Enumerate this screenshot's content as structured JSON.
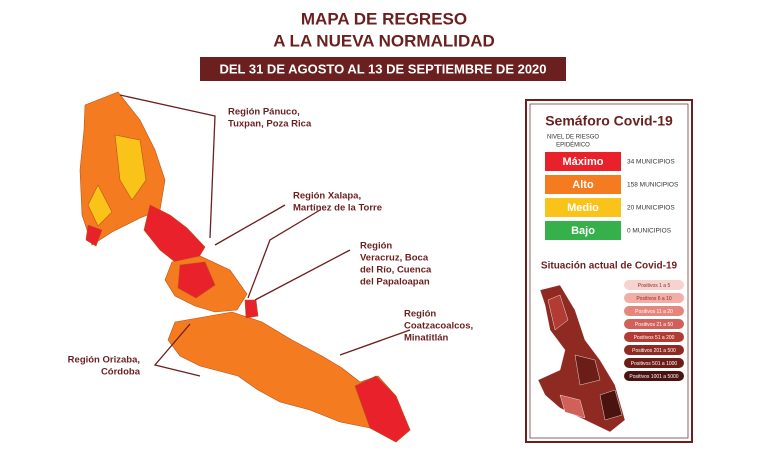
{
  "header": {
    "title_lines": [
      "MAPA DE REGRESO",
      "A LA NUEVA NORMALIDAD"
    ],
    "dates": "DEL 31 DE AGOSTO AL 13 DE SEPTIEMBRE DE 2020"
  },
  "regions": [
    {
      "lines": [
        "Región Pánuco,",
        "Tuxpan, Poza Rica"
      ]
    },
    {
      "lines": [
        "Región Xalapa,",
        "Martínez de la Torre"
      ]
    },
    {
      "lines": [
        "Región",
        "Veracruz, Boca",
        "del Río, Cuenca",
        "del Papaloapan"
      ]
    },
    {
      "lines": [
        "Región",
        "Coatzacoalcos,",
        "Minatitlán"
      ]
    },
    {
      "lines": [
        "Región Orizaba,",
        "Córdoba"
      ]
    }
  ],
  "semaforo": {
    "title": "Semáforo Covid-19",
    "risk_label": [
      "NIVEL DE RIESGO",
      "EPIDÉMICO"
    ],
    "levels": [
      {
        "name": "Máximo",
        "count": "34 MUNICIPIOS",
        "color": "#e8212b"
      },
      {
        "name": "Alto",
        "count": "158 MUNICIPIOS",
        "color": "#f47b20"
      },
      {
        "name": "Medio",
        "count": "20 MUNICIPIOS",
        "color": "#f9c31a"
      },
      {
        "name": "Bajo",
        "count": "0 MUNICIPIOS",
        "color": "#35b04a"
      }
    ]
  },
  "situacion": {
    "title": "Situación actual de Covid-19",
    "legend": [
      {
        "label": "Positivos 1 a 5",
        "color": "#f7d3cf"
      },
      {
        "label": "Positivos 6 a 10",
        "color": "#f2aea6"
      },
      {
        "label": "Positivos 11 a 20",
        "color": "#e5857b"
      },
      {
        "label": "Positivos 21 a 50",
        "color": "#d1605a"
      },
      {
        "label": "Positivos 51 a 200",
        "color": "#b23c33"
      },
      {
        "label": "Positivos 201 a 500",
        "color": "#8e2a22"
      },
      {
        "label": "Positivos 501 a 1000",
        "color": "#6b1e18"
      },
      {
        "label": "Positivos 1001 a 5000",
        "color": "#4a130f"
      }
    ]
  }
}
